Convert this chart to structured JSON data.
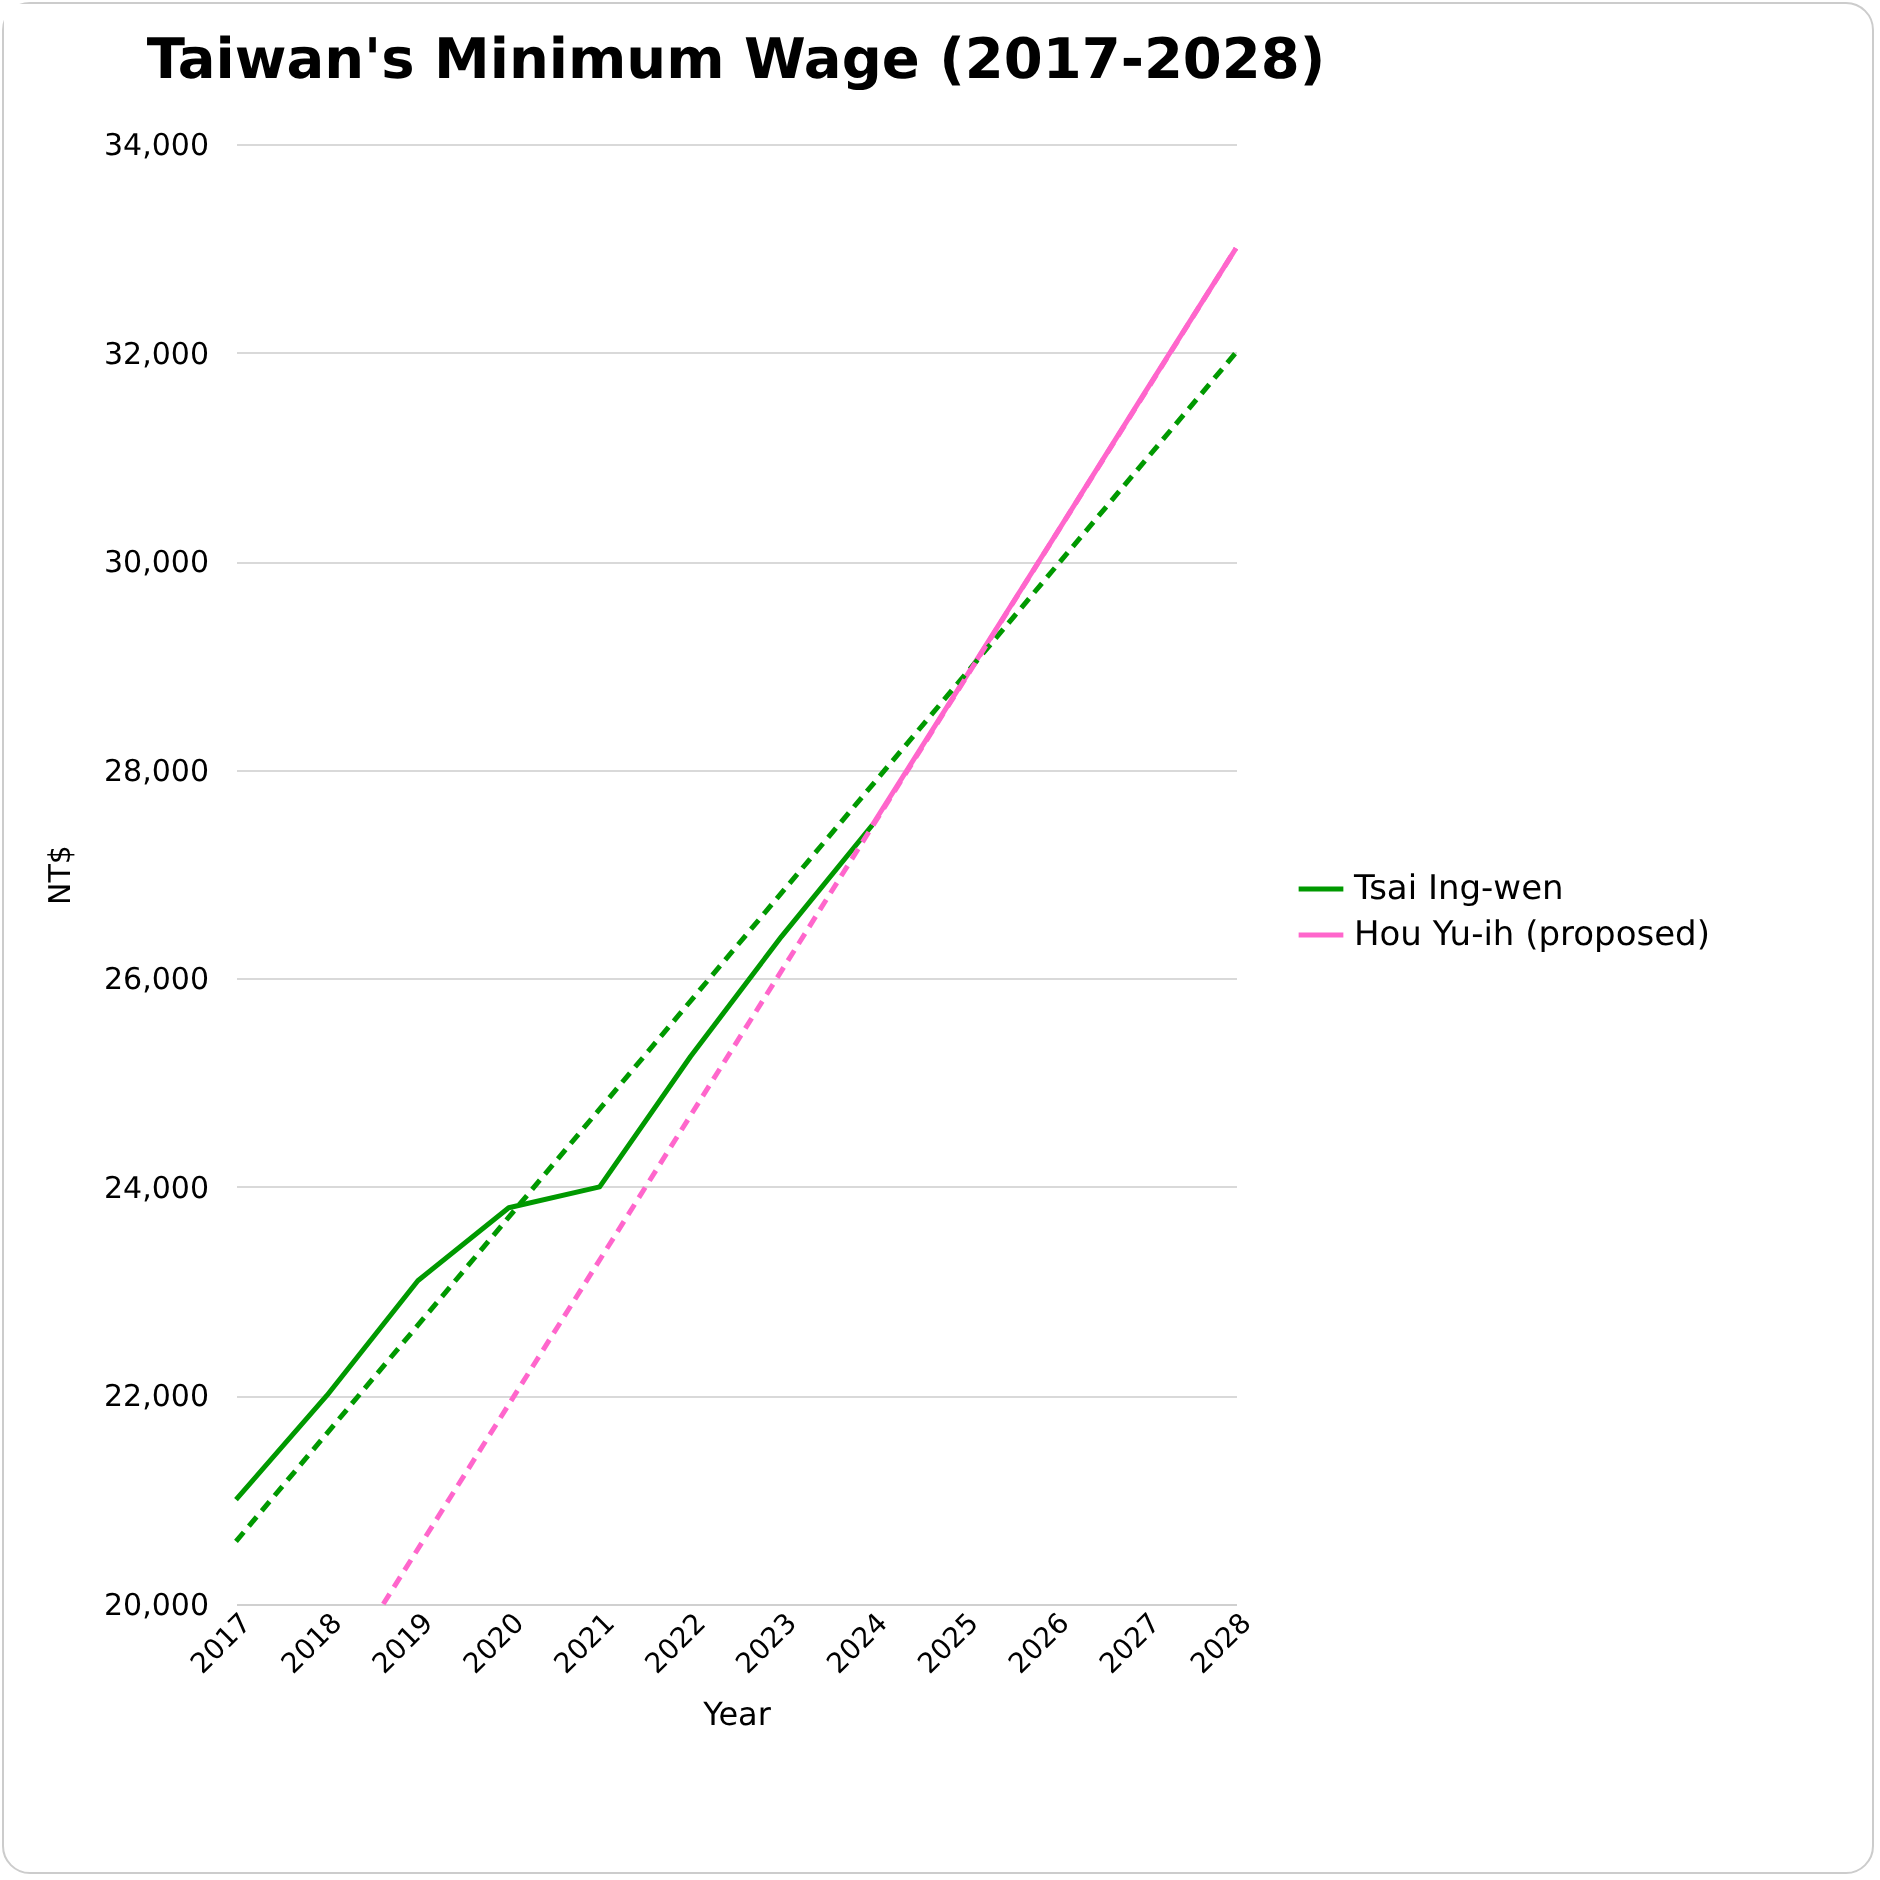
{
  "chart_data": {
    "type": "line",
    "title": "Taiwan's Minimum Wage (2017-2028)",
    "xlabel": "Year",
    "ylabel": "NT$",
    "xlim": [
      2017,
      2028
    ],
    "xticks": [
      2017,
      2018,
      2019,
      2020,
      2021,
      2022,
      2023,
      2024,
      2025,
      2026,
      2027,
      2028
    ],
    "ylim": [
      20000,
      34000
    ],
    "yticks": [
      {
        "value": 20000,
        "label": "20,000"
      },
      {
        "value": 22000,
        "label": "22,000"
      },
      {
        "value": 24000,
        "label": "24,000"
      },
      {
        "value": 26000,
        "label": "26,000"
      },
      {
        "value": 28000,
        "label": "28,000"
      },
      {
        "value": 30000,
        "label": "30,000"
      },
      {
        "value": 32000,
        "label": "32,000"
      },
      {
        "value": 34000,
        "label": "34,000"
      }
    ],
    "grid": "y",
    "legend": "right",
    "line_style": "solid",
    "series": [
      {
        "name": "Tsai Ing-wen",
        "color": "#009900",
        "x": [
          2017,
          2018,
          2019,
          2020,
          2021,
          2022,
          2023,
          2024
        ],
        "values": [
          21000,
          22000,
          23100,
          23800,
          24000,
          25250,
          26400,
          27470
        ]
      },
      {
        "name": "Hou Yu-ih (proposed)",
        "color": "#ff66cc",
        "x": [
          2024,
          2025,
          2026,
          2027,
          2028
        ],
        "values": [
          27470,
          28850,
          30230,
          31620,
          33000
        ]
      },
      {
        "type": "line",
        "color": "#009900",
        "line_style": "dashed",
        "x": [
          2017,
          2028
        ],
        "values": [
          20600,
          32000
        ]
      },
      {
        "type": "line",
        "color": "#ff66cc",
        "line_style": "dashed",
        "x": [
          2018.62,
          2028
        ],
        "values": [
          20000,
          33000
        ]
      }
    ]
  }
}
